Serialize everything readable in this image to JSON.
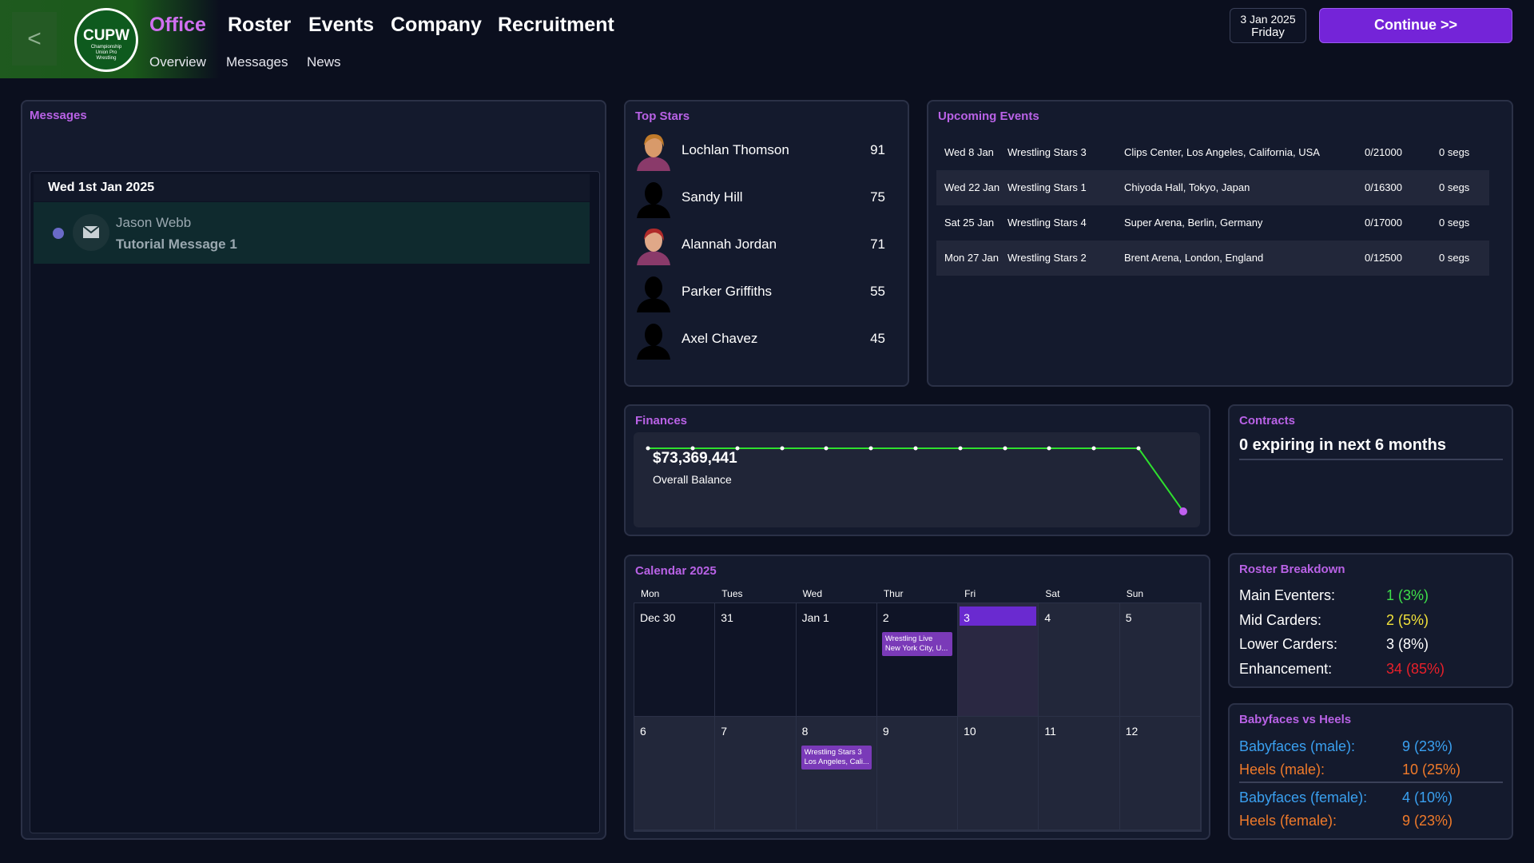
{
  "header": {
    "back": "<",
    "logo": {
      "title": "CUPW",
      "subtitle": "Championship Union Pro Wrestling"
    },
    "nav": [
      "Office",
      "Roster",
      "Events",
      "Company",
      "Recruitment"
    ],
    "subnav": [
      "Overview",
      "Messages",
      "News"
    ],
    "date": "3 Jan 2025",
    "weekday": "Friday",
    "continue": "Continue >>"
  },
  "messages": {
    "title": "Messages",
    "groups": [
      {
        "date": "Wed 1st Jan 2025",
        "items": [
          {
            "sender": "Jason Webb",
            "subject": "Tutorial Message 1"
          }
        ]
      }
    ]
  },
  "top_stars": {
    "title": "Top Stars",
    "rows": [
      {
        "name": "Lochlan Thomson",
        "rating": 91
      },
      {
        "name": "Sandy Hill",
        "rating": 75
      },
      {
        "name": "Alannah Jordan",
        "rating": 71
      },
      {
        "name": "Parker Griffiths",
        "rating": 55
      },
      {
        "name": "Axel Chavez",
        "rating": 45
      }
    ]
  },
  "upcoming_events": {
    "title": "Upcoming Events",
    "rows": [
      [
        "Wed 8 Jan",
        "Wrestling Stars 3",
        "Clips Center, Los Angeles, California, USA",
        "0/21000",
        "0 segs"
      ],
      [
        "Wed 22 Jan",
        "Wrestling Stars 1",
        "Chiyoda Hall, Tokyo, Japan",
        "0/16300",
        "0 segs"
      ],
      [
        "Sat 25 Jan",
        "Wrestling Stars 4",
        "Super Arena, Berlin, Germany",
        "0/17000",
        "0 segs"
      ],
      [
        "Mon 27 Jan",
        "Wrestling Stars 2",
        "Brent Arena, London, England",
        "0/12500",
        "0 segs"
      ]
    ]
  },
  "finances": {
    "title": "Finances",
    "balance": "$73,369,441",
    "label": "Overall Balance"
  },
  "contracts": {
    "title": "Contracts",
    "text": "0 expiring in next 6 months"
  },
  "calendar": {
    "title": "Calendar 2025",
    "weekdays": [
      "Mon",
      "Tues",
      "Wed",
      "Thur",
      "Fri",
      "Sat",
      "Sun"
    ],
    "weeks": [
      [
        {
          "date": "Dec 30"
        },
        {
          "date": "31"
        },
        {
          "date": "Jan 1"
        },
        {
          "date": "2",
          "event": [
            "Wrestling Live",
            "New York City, U..."
          ]
        },
        {
          "date": "3",
          "today": true
        },
        {
          "date": "4"
        },
        {
          "date": "5"
        }
      ],
      [
        {
          "date": "6"
        },
        {
          "date": "7"
        },
        {
          "date": "8",
          "event": [
            "Wrestling Stars 3",
            "Los Angeles, Cali..."
          ]
        },
        {
          "date": "9"
        },
        {
          "date": "10"
        },
        {
          "date": "11"
        },
        {
          "date": "12"
        }
      ]
    ]
  },
  "roster_breakdown": {
    "title": "Roster Breakdown",
    "rows": [
      {
        "label": "Main Eventers:",
        "value": "1 (3%)",
        "color": "#3ee04a"
      },
      {
        "label": "Mid Carders:",
        "value": "2 (5%)",
        "color": "#f2e23a"
      },
      {
        "label": "Lower Carders:",
        "value": "3 (8%)",
        "color": "#ffffff"
      },
      {
        "label": "Enhancement:",
        "value": "34 (85%)",
        "color": "#e8202a"
      }
    ]
  },
  "babyfaces_heels": {
    "title": "Babyfaces vs Heels",
    "rows": [
      {
        "label": "Babyfaces (male):",
        "value": "9 (23%)",
        "color": "#3aa0f0"
      },
      {
        "label": "Heels (male):",
        "value": "10 (25%)",
        "color": "#f07a2a"
      },
      {
        "label": "Babyfaces (female):",
        "value": "4 (10%)",
        "color": "#3aa0f0"
      },
      {
        "label": "Heels (female):",
        "value": "9 (23%)",
        "color": "#f07a2a"
      }
    ]
  }
}
